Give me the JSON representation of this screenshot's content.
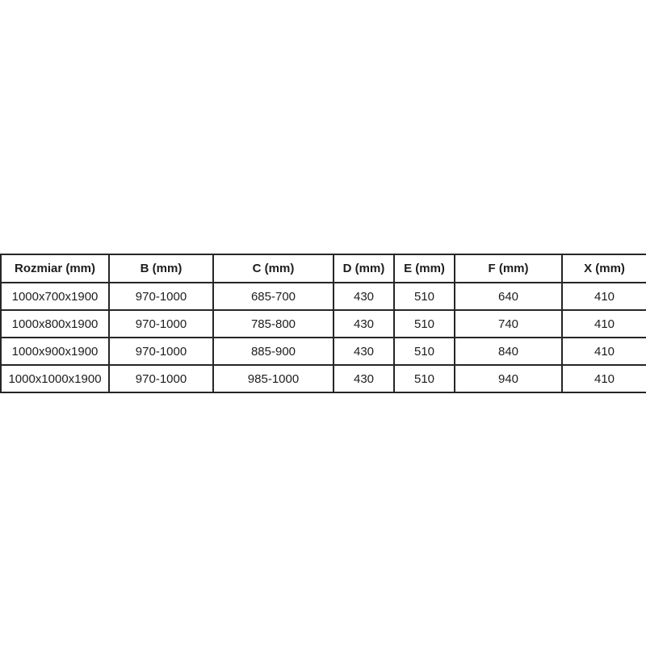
{
  "page": {
    "background_color": "#ffffff",
    "table_border_color": "#262626",
    "text_color": "#1d1d1d"
  },
  "table": {
    "headers": [
      "Rozmiar (mm)",
      "B (mm)",
      "C (mm)",
      "D (mm)",
      "E (mm)",
      "F (mm)",
      "X (mm)"
    ],
    "rows": [
      [
        "1000x700x1900",
        "970-1000",
        "685-700",
        "430",
        "510",
        "640",
        "410"
      ],
      [
        "1000x800x1900",
        "970-1000",
        "785-800",
        "430",
        "510",
        "740",
        "410"
      ],
      [
        "1000x900x1900",
        "970-1000",
        "885-900",
        "430",
        "510",
        "840",
        "410"
      ],
      [
        "1000x1000x1900",
        "970-1000",
        "985-1000",
        "430",
        "510",
        "940",
        "410"
      ]
    ]
  },
  "chart_data": {
    "type": "table",
    "title": "",
    "columns": [
      "Rozmiar (mm)",
      "B (mm)",
      "C (mm)",
      "D (mm)",
      "E (mm)",
      "F (mm)",
      "X (mm)"
    ],
    "rows": [
      [
        "1000x700x1900",
        "970-1000",
        "685-700",
        430,
        510,
        640,
        410
      ],
      [
        "1000x800x1900",
        "970-1000",
        "785-800",
        430,
        510,
        740,
        410
      ],
      [
        "1000x900x1900",
        "970-1000",
        "885-900",
        430,
        510,
        840,
        410
      ],
      [
        "1000x1000x1900",
        "970-1000",
        "985-1000",
        430,
        510,
        940,
        410
      ]
    ]
  }
}
